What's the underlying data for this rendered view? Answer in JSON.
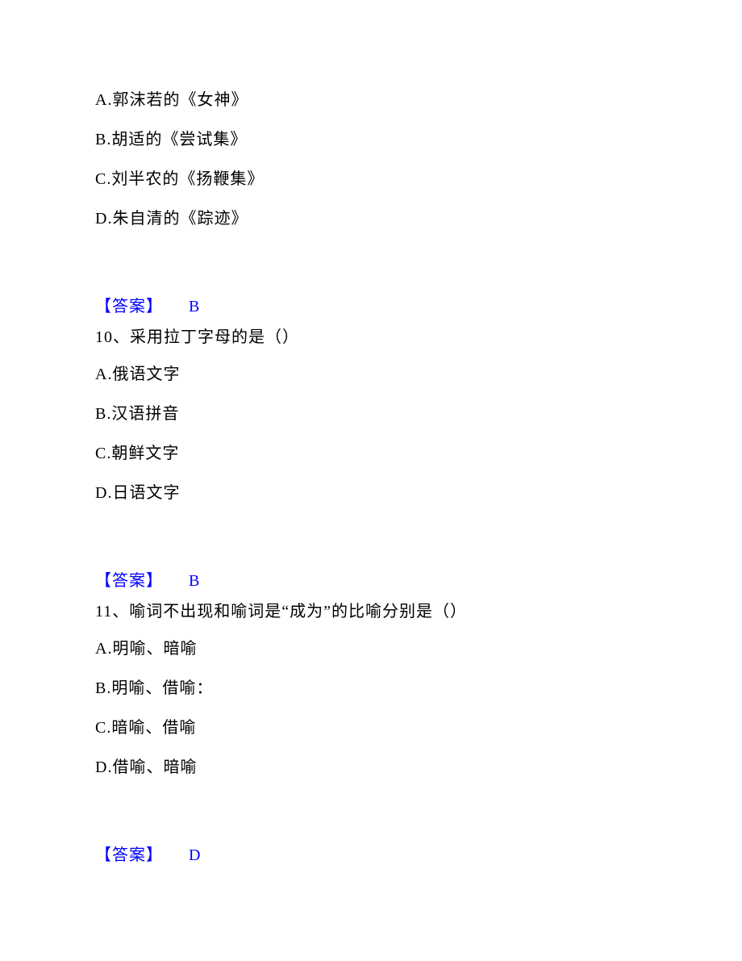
{
  "text_color": "#000000",
  "answer_color": "#0000ff",
  "background_color": "#ffffff",
  "font_size": 20,
  "font_family": "SimSun",
  "q9": {
    "options": {
      "a": "A.郭沫若的《女神》",
      "b": "B.胡适的《尝试集》",
      "c": "C.刘半农的《扬鞭集》",
      "d": "D.朱自清的《踪迹》"
    },
    "answer_label": "【答案】",
    "answer_value": "B"
  },
  "q10": {
    "question": "10、采用拉丁字母的是（）",
    "options": {
      "a": "A.俄语文字",
      "b": "B.汉语拼音",
      "c": "C.朝鲜文字",
      "d": "D.日语文字"
    },
    "answer_label": "【答案】",
    "answer_value": "B"
  },
  "q11": {
    "question": "11、喻词不出现和喻词是“成为”的比喻分别是（）",
    "options": {
      "a": "A.明喻、暗喻",
      "b": "B.明喻、借喻：",
      "c": "C.暗喻、借喻",
      "d": "D.借喻、暗喻"
    },
    "answer_label": "【答案】",
    "answer_value": "D"
  }
}
